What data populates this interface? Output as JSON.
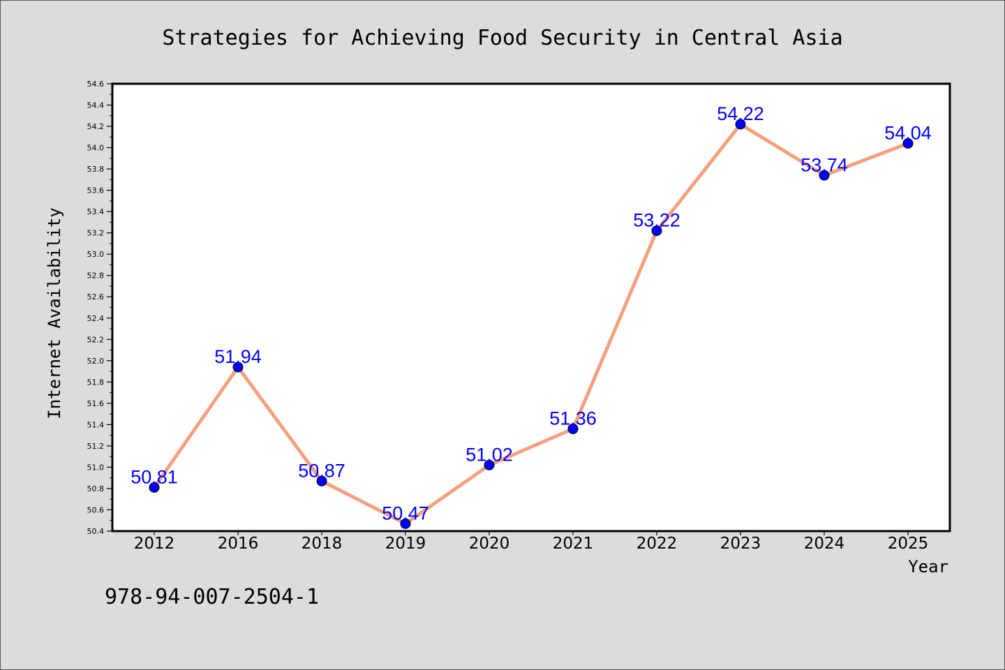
{
  "chart_data": {
    "type": "line",
    "title": "Strategies for Achieving Food Security in Central Asia",
    "xlabel": "Year",
    "ylabel": "Internet Availability",
    "categories": [
      "2012",
      "2016",
      "2018",
      "2019",
      "2020",
      "2021",
      "2022",
      "2023",
      "2024",
      "2025"
    ],
    "series": [
      {
        "values": [
          50.81,
          51.94,
          50.87,
          50.47,
          51.02,
          51.36,
          53.22,
          54.22,
          53.74,
          54.04
        ]
      }
    ],
    "data_labels": [
      "50.81",
      "51.94",
      "50.87",
      "50.47",
      "51.02",
      "51.36",
      "53.22",
      "54.22",
      "53.74",
      "54.04"
    ],
    "ylim": [
      50.4,
      54.6
    ],
    "yticks": [
      "50.4",
      "50.6",
      "50.8",
      "51.0",
      "51.2",
      "51.4",
      "51.6",
      "51.8",
      "52.0",
      "52.2",
      "52.4",
      "52.6",
      "52.8",
      "53.0",
      "53.2",
      "53.4",
      "53.6",
      "53.8",
      "54.0",
      "54.2",
      "54.4",
      "54.6"
    ],
    "grid": false,
    "legend": "none",
    "colors": {
      "line": "#f4a07c",
      "marker": "#0000ff",
      "label": "#0000ff",
      "background": "#dcdcdc",
      "plot_background": "#ffffff"
    }
  },
  "footer": {
    "text": "978-94-007-2504-1"
  }
}
